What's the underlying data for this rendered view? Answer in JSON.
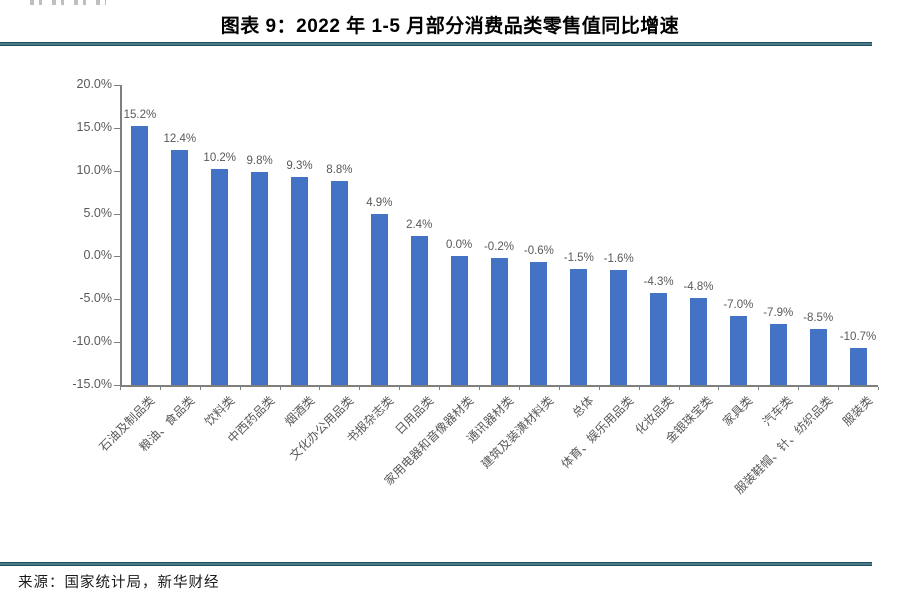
{
  "figure": {
    "title": "图表 9：2022 年 1-5 月部分消费品类零售值同比增速"
  },
  "footer": {
    "source": "来源：国家统计局，新华财经"
  },
  "colors": {
    "bar": "#4472C4",
    "rule": "#1E5062",
    "axis": "#7F7F7F",
    "tick_label": "#595959"
  },
  "chart_data": {
    "type": "bar",
    "title": "图表 9：2022 年 1-5 月部分消费品类零售值同比增速",
    "categories": [
      "石油及制品类",
      "粮油、食品类",
      "饮料类",
      "中西药品类",
      "烟酒类",
      "文化办公用品类",
      "书报杂志类",
      "日用品类",
      "家用电器和音像器材类",
      "通讯器材类",
      "建筑及装潢材料类",
      "总体",
      "体育、娱乐用品类",
      "化妆品类",
      "金银珠宝类",
      "家具类",
      "汽车类",
      "服装鞋帽、针、纺织品类",
      "服装类"
    ],
    "values": [
      15.2,
      12.4,
      10.2,
      9.8,
      9.3,
      8.8,
      4.9,
      2.4,
      0.0,
      -0.2,
      -0.6,
      -1.5,
      -1.6,
      -4.3,
      -4.8,
      -7.0,
      -7.9,
      -8.5,
      -10.7
    ],
    "value_labels": [
      "15.2%",
      "12.4%",
      "10.2%",
      "9.8%",
      "9.3%",
      "8.8%",
      "4.9%",
      "2.4%",
      "0.0%",
      "-0.2%",
      "-0.6%",
      "-1.5%",
      "-1.6%",
      "-4.3%",
      "-4.8%",
      "-7.0%",
      "-7.9%",
      "-8.5%",
      "-10.7%"
    ],
    "xlabel": "",
    "ylabel": "",
    "ylim": [
      -15,
      20
    ],
    "y_tick_values": [
      20,
      15,
      10,
      5,
      0,
      -5,
      -10,
      -15
    ],
    "y_tick_labels": [
      "20.0%",
      "15.0%",
      "10.0%",
      "5.0%",
      "0.0%",
      "-5.0%",
      "-10.0%",
      "-15.0%"
    ],
    "grid": false,
    "legend": null,
    "bar_anchor": -15,
    "category_label_rotation_deg": -45
  }
}
